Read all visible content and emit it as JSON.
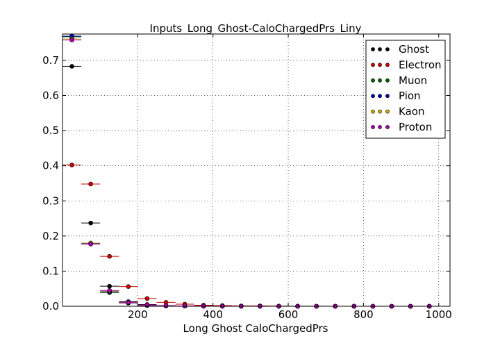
{
  "chart_data": {
    "type": "scatter",
    "title": "Inputs_Long_Ghost-CaloChargedPrs_Liny",
    "xlabel": "Long Ghost CaloChargedPrs",
    "ylabel": "",
    "xlim": [
      0,
      1030
    ],
    "ylim": [
      0,
      0.775
    ],
    "xticks": [
      200,
      400,
      600,
      800,
      1000
    ],
    "yticks": [
      0.0,
      0.1,
      0.2,
      0.3,
      0.4,
      0.5,
      0.6,
      0.7
    ],
    "xtick_labels": [
      "200",
      "400",
      "600",
      "800",
      "1000"
    ],
    "ytick_labels": [
      "0.0",
      "0.1",
      "0.2",
      "0.3",
      "0.4",
      "0.5",
      "0.6",
      "0.7"
    ],
    "grid": true,
    "legend_position": "top-right",
    "x_bin_halfwidth": 25,
    "series": [
      {
        "name": "Ghost",
        "color": "#000000",
        "points": [
          [
            25,
            0.683
          ],
          [
            75,
            0.237
          ],
          [
            125,
            0.057
          ],
          [
            175,
            0.013
          ],
          [
            225,
            0.005
          ],
          [
            275,
            0.002
          ],
          [
            325,
            0.001
          ],
          [
            375,
            0.0005
          ],
          [
            425,
            0.0003
          ],
          [
            475,
            0.0002
          ],
          [
            525,
            0.0001
          ],
          [
            575,
            0.0001
          ],
          [
            625,
            0.0
          ],
          [
            675,
            0.0
          ],
          [
            725,
            0.0
          ],
          [
            775,
            0.0
          ],
          [
            825,
            0.0
          ],
          [
            875,
            0.0
          ],
          [
            925,
            0.0
          ],
          [
            975,
            0.0
          ]
        ]
      },
      {
        "name": "Electron",
        "color": "#cc0000",
        "points": [
          [
            25,
            0.402
          ],
          [
            75,
            0.348
          ],
          [
            125,
            0.142
          ],
          [
            175,
            0.056
          ],
          [
            225,
            0.022
          ],
          [
            275,
            0.011
          ],
          [
            325,
            0.006
          ],
          [
            375,
            0.003
          ],
          [
            425,
            0.002
          ],
          [
            475,
            0.001
          ],
          [
            525,
            0.001
          ],
          [
            575,
            0.0005
          ],
          [
            625,
            0.0003
          ],
          [
            675,
            0.0002
          ],
          [
            725,
            0.0001
          ],
          [
            775,
            0.0001
          ],
          [
            825,
            0.0
          ],
          [
            875,
            0.0
          ],
          [
            925,
            0.0
          ],
          [
            975,
            0.0
          ]
        ]
      },
      {
        "name": "Muon",
        "color": "#006600",
        "points": [
          [
            25,
            0.767
          ],
          [
            75,
            0.179
          ],
          [
            125,
            0.039
          ],
          [
            175,
            0.01
          ],
          [
            225,
            0.003
          ],
          [
            275,
            0.001
          ],
          [
            325,
            0.0005
          ],
          [
            375,
            0.0002
          ],
          [
            425,
            0.0001
          ],
          [
            475,
            0.0
          ],
          [
            525,
            0.0
          ],
          [
            575,
            0.0
          ],
          [
            625,
            0.0
          ],
          [
            675,
            0.0
          ],
          [
            725,
            0.0
          ],
          [
            775,
            0.0
          ],
          [
            825,
            0.0
          ],
          [
            875,
            0.0
          ],
          [
            925,
            0.0
          ],
          [
            975,
            0.0
          ]
        ]
      },
      {
        "name": "Pion",
        "color": "#0000aa",
        "points": [
          [
            25,
            0.769
          ],
          [
            75,
            0.178
          ],
          [
            125,
            0.041
          ],
          [
            175,
            0.009
          ],
          [
            225,
            0.002
          ],
          [
            275,
            0.001
          ],
          [
            325,
            0.0004
          ],
          [
            375,
            0.0002
          ],
          [
            425,
            0.0001
          ],
          [
            475,
            0.0
          ],
          [
            525,
            0.0
          ],
          [
            575,
            0.0
          ],
          [
            625,
            0.0
          ],
          [
            675,
            0.0
          ],
          [
            725,
            0.0
          ],
          [
            775,
            0.0
          ],
          [
            825,
            0.0
          ],
          [
            875,
            0.0
          ],
          [
            925,
            0.0
          ],
          [
            975,
            0.0
          ]
        ]
      },
      {
        "name": "Kaon",
        "color": "#ccaa00",
        "points": [
          [
            25,
            0.761
          ],
          [
            75,
            0.18
          ],
          [
            125,
            0.043
          ],
          [
            175,
            0.01
          ],
          [
            225,
            0.003
          ],
          [
            275,
            0.001
          ],
          [
            325,
            0.0005
          ],
          [
            375,
            0.0002
          ],
          [
            425,
            0.0001
          ],
          [
            475,
            0.0
          ],
          [
            525,
            0.0
          ],
          [
            575,
            0.0
          ],
          [
            625,
            0.0
          ],
          [
            675,
            0.0
          ],
          [
            725,
            0.0
          ],
          [
            775,
            0.0
          ],
          [
            825,
            0.0
          ],
          [
            875,
            0.0
          ],
          [
            925,
            0.0
          ],
          [
            975,
            0.0
          ]
        ]
      },
      {
        "name": "Proton",
        "color": "#aa00aa",
        "points": [
          [
            25,
            0.758
          ],
          [
            75,
            0.177
          ],
          [
            125,
            0.045
          ],
          [
            175,
            0.011
          ],
          [
            225,
            0.004
          ],
          [
            275,
            0.002
          ],
          [
            325,
            0.001
          ],
          [
            375,
            0.0004
          ],
          [
            425,
            0.0002
          ],
          [
            475,
            0.0001
          ],
          [
            525,
            0.0
          ],
          [
            575,
            0.0
          ],
          [
            625,
            0.0
          ],
          [
            675,
            0.0
          ],
          [
            725,
            0.0
          ],
          [
            775,
            0.0
          ],
          [
            825,
            0.0
          ],
          [
            875,
            0.0
          ],
          [
            925,
            0.0
          ],
          [
            975,
            0.0
          ]
        ]
      }
    ]
  }
}
